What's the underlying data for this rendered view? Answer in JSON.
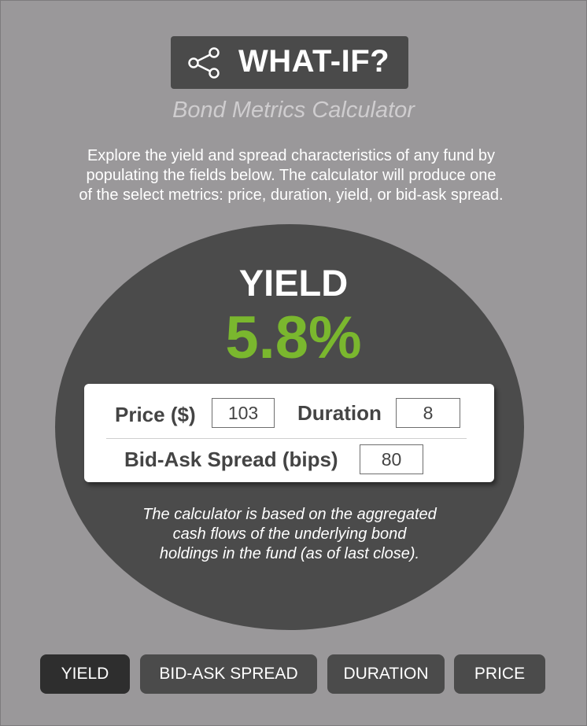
{
  "header": {
    "title": "WHAT-IF?",
    "icon": "share-icon",
    "subtitle": "Bond Metrics Calculator"
  },
  "intro": {
    "line1": "Explore the yield and spread characteristics of any fund by",
    "line2": "populating the fields below. The calculator will produce one",
    "line3": "of the select metrics: price, duration, yield, or bid-ask spread."
  },
  "result": {
    "label": "YIELD",
    "value": "5.8%"
  },
  "inputs": {
    "price": {
      "label": "Price ($)",
      "value": "103"
    },
    "duration": {
      "label": "Duration",
      "value": "8"
    },
    "spread": {
      "label": "Bid-Ask Spread (bips)",
      "value": "80"
    }
  },
  "note": {
    "line1": "The calculator is based on the aggregated",
    "line2": "cash flows of the underlying bond",
    "line3": "holdings in the fund (as of last close)."
  },
  "tabs": [
    {
      "label": "YIELD",
      "active": true
    },
    {
      "label": "BID-ASK SPREAD",
      "active": false
    },
    {
      "label": "DURATION",
      "active": false
    },
    {
      "label": "PRICE",
      "active": false
    }
  ],
  "colors": {
    "background": "#9a989a",
    "dark": "#4b4b4b",
    "accent_green": "#7ab72e",
    "active_tab": "#2e2e2e"
  }
}
